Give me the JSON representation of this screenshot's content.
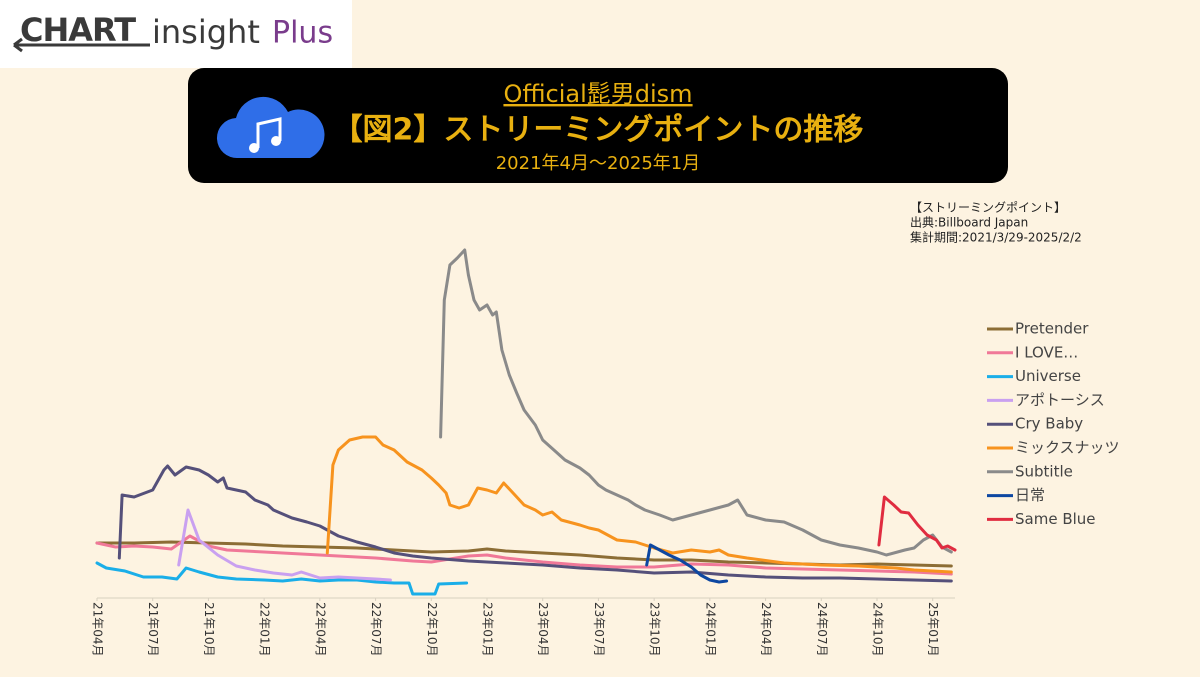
{
  "logo": {
    "brand": "CHART",
    "name": "insight",
    "plus": "Plus"
  },
  "chart_data": {
    "type": "line",
    "artist": "Official髭男dism",
    "title": "【図2】ストリーミングポイントの推移",
    "subtitle": "2021年4月〜2025年1月",
    "notes": [
      "【ストリーミングポイント】",
      "出典:Billboard Japan",
      "集計期間:2021/3/29-2025/2/2"
    ],
    "xlim": [
      0,
      46.2
    ],
    "xticks": [
      {
        "value": 0,
        "label": "21年04月"
      },
      {
        "value": 3,
        "label": "21年07月"
      },
      {
        "value": 6,
        "label": "21年10月"
      },
      {
        "value": 9,
        "label": "22年01月"
      },
      {
        "value": 12,
        "label": "22年04月"
      },
      {
        "value": 15,
        "label": "22年07月"
      },
      {
        "value": 18,
        "label": "22年10月"
      },
      {
        "value": 21,
        "label": "23年01月"
      },
      {
        "value": 24,
        "label": "23年04月"
      },
      {
        "value": 27,
        "label": "23年07月"
      },
      {
        "value": 30,
        "label": "23年10月"
      },
      {
        "value": 33,
        "label": "24年01月"
      },
      {
        "value": 36,
        "label": "24年04月"
      },
      {
        "value": 39,
        "label": "24年07月"
      },
      {
        "value": 42,
        "label": "24年10月"
      },
      {
        "value": 45,
        "label": "25年01月"
      }
    ],
    "ylim": [
      0,
      350
    ],
    "series": [
      {
        "name": "Pretender",
        "color": "#8c6d35",
        "x": [
          0,
          2,
          4,
          6,
          8,
          10,
          12,
          14,
          16,
          18,
          20,
          21,
          22,
          24,
          26,
          28,
          30,
          32,
          34,
          36,
          38,
          40,
          42,
          44,
          46
        ],
        "values": [
          55,
          55,
          56,
          55,
          54,
          52,
          51,
          50,
          48,
          46,
          47,
          49,
          47,
          45,
          43,
          40,
          38,
          38,
          36,
          35,
          34,
          33,
          34,
          33,
          32
        ]
      },
      {
        "name": "I LOVE…",
        "color": "#f07898",
        "x": [
          0,
          1,
          2,
          3,
          4,
          5,
          6,
          7,
          9,
          11,
          13,
          15,
          17,
          18,
          20,
          21,
          22,
          24,
          26,
          28,
          30,
          32,
          34,
          36,
          38,
          40,
          42,
          44,
          46
        ],
        "values": [
          55,
          51,
          52,
          51,
          49,
          62,
          52,
          48,
          46,
          44,
          42,
          40,
          37,
          36,
          42,
          43,
          40,
          36,
          33,
          31,
          31,
          34,
          33,
          30,
          29,
          28,
          27,
          26,
          24
        ]
      },
      {
        "name": "Universe",
        "color": "#1aaee8",
        "x": [
          0,
          0.5,
          1.5,
          2.5,
          3.5,
          4.3,
          4.8,
          5.5,
          6.5,
          7.5,
          9,
          10,
          11,
          12,
          13,
          14,
          15,
          16,
          16.8,
          17,
          18.2,
          18.4,
          19.9
        ],
        "values": [
          35,
          30,
          27,
          21,
          21,
          19,
          30,
          26,
          21,
          19,
          18,
          17,
          19,
          17,
          18,
          18,
          16,
          15,
          15,
          4,
          4,
          14,
          15
        ]
      },
      {
        "name": "アポトーシス",
        "color": "#c9a0f0",
        "x": [
          4.4,
          4.9,
          5.5,
          6.5,
          7.5,
          8.5,
          9.5,
          10.5,
          11,
          12,
          13,
          14,
          15,
          15.8
        ],
        "values": [
          33,
          88,
          58,
          43,
          32,
          28,
          25,
          23,
          26,
          20,
          21,
          20,
          19,
          18
        ]
      },
      {
        "name": "Cry Baby",
        "color": "#55507a",
        "x": [
          1.2,
          1.35,
          2,
          3,
          3.6,
          3.8,
          4.2,
          4.8,
          5.5,
          6,
          6.5,
          6.8,
          7,
          8,
          8.5,
          9.2,
          9.5,
          10.5,
          11.3,
          12,
          13,
          14,
          15,
          16,
          17,
          18,
          20,
          22,
          24,
          26,
          28,
          30,
          32,
          34,
          36,
          38,
          40,
          42,
          44,
          46
        ],
        "values": [
          40,
          103,
          101,
          108,
          128,
          132,
          123,
          131,
          128,
          123,
          116,
          120,
          110,
          106,
          98,
          93,
          88,
          80,
          76,
          72,
          62,
          56,
          51,
          45,
          42,
          40,
          37,
          35,
          33,
          30,
          28,
          25,
          26,
          23,
          21,
          20,
          20,
          19,
          18,
          17
        ]
      },
      {
        "name": "ミックスナッツ",
        "color": "#f7931e",
        "x": [
          12.4,
          12.7,
          13,
          13.6,
          14.3,
          15,
          15.4,
          16,
          16.7,
          17.5,
          18,
          18.4,
          18.8,
          19,
          19.5,
          20,
          20.5,
          21,
          21.5,
          21.9,
          22.5,
          23,
          23.6,
          24,
          24.5,
          25,
          26,
          26.5,
          27,
          28,
          29,
          30,
          31,
          32,
          33,
          33.5,
          34,
          35,
          37,
          39,
          41,
          43,
          44,
          46
        ],
        "values": [
          45,
          133,
          148,
          158,
          161,
          161,
          153,
          148,
          136,
          128,
          120,
          113,
          105,
          93,
          90,
          93,
          110,
          108,
          105,
          115,
          103,
          93,
          88,
          83,
          86,
          78,
          73,
          70,
          68,
          58,
          56,
          50,
          45,
          48,
          46,
          48,
          43,
          40,
          35,
          33,
          32,
          30,
          28,
          26
        ]
      },
      {
        "name": "Subtitle",
        "color": "#8a8a8a",
        "x": [
          18.5,
          18.7,
          19,
          19.4,
          19.8,
          20,
          20.3,
          20.6,
          21,
          21.3,
          21.5,
          21.8,
          22.2,
          22.6,
          23,
          23.6,
          24,
          24.6,
          25.2,
          26,
          26.5,
          27,
          27.4,
          28,
          28.6,
          29,
          29.5,
          30.3,
          31,
          32,
          33,
          34,
          34.5,
          35,
          36,
          37,
          38,
          39,
          40,
          41,
          42,
          42.5,
          43.5,
          44,
          44.5,
          45,
          45.5,
          46
        ],
        "values": [
          161,
          298,
          333,
          340,
          348,
          323,
          298,
          288,
          293,
          283,
          286,
          248,
          223,
          205,
          188,
          173,
          158,
          148,
          138,
          130,
          123,
          113,
          108,
          103,
          98,
          93,
          88,
          83,
          78,
          83,
          88,
          93,
          98,
          83,
          78,
          76,
          68,
          58,
          53,
          50,
          46,
          43,
          48,
          50,
          58,
          63,
          51,
          46
        ]
      },
      {
        "name": "日常",
        "color": "#0d47a1",
        "x": [
          29.6,
          29.8,
          30.3,
          30.8,
          31.4,
          32,
          32.5,
          33,
          33.5,
          33.9
        ],
        "values": [
          33,
          53,
          48,
          43,
          38,
          31,
          23,
          18,
          16,
          17
        ]
      },
      {
        "name": "Same Blue",
        "color": "#e02c40",
        "x": [
          42.1,
          42.4,
          42.9,
          43.3,
          43.7,
          44.2,
          44.7,
          45.2,
          45.5,
          45.8,
          46.2
        ],
        "values": [
          53,
          101,
          93,
          86,
          85,
          73,
          63,
          58,
          50,
          52,
          48
        ]
      }
    ]
  }
}
